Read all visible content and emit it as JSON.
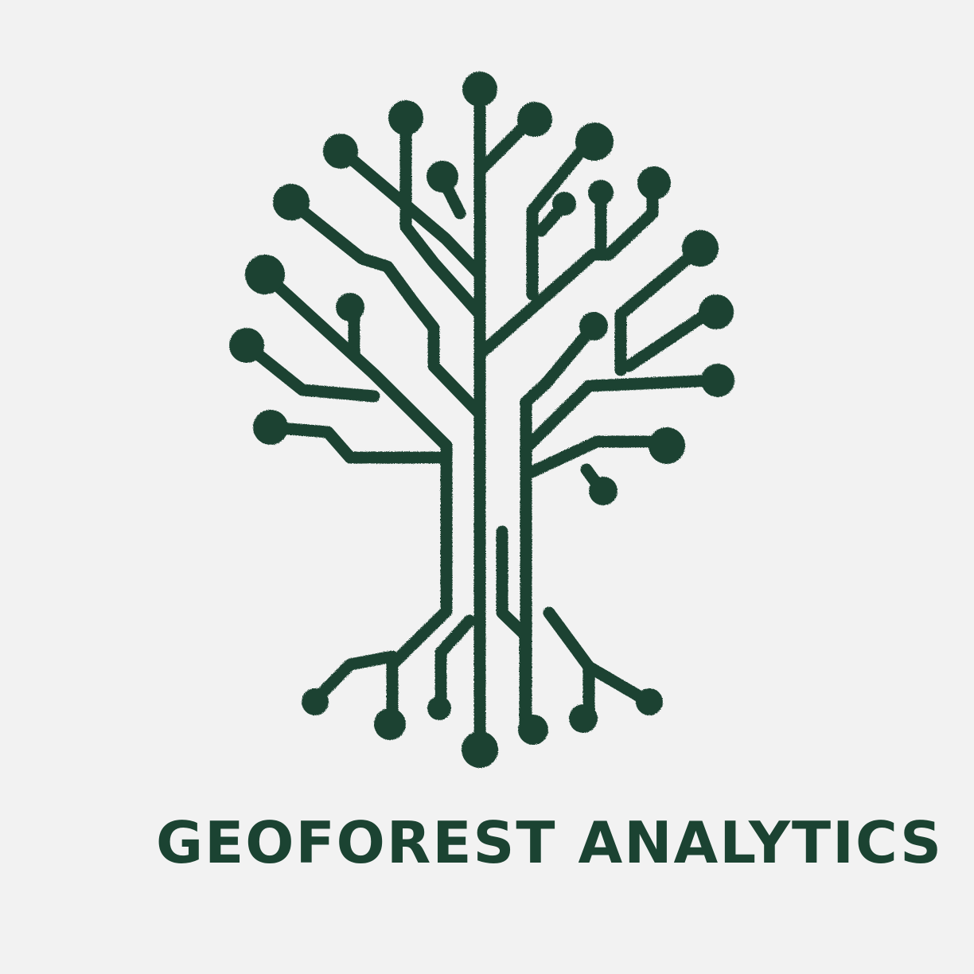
{
  "brand": {
    "name": "GEOFOREST ANALYTICS",
    "color": "#1b4332"
  },
  "logo": {
    "icon": "circuit-tree-icon",
    "style": "embroidered"
  }
}
